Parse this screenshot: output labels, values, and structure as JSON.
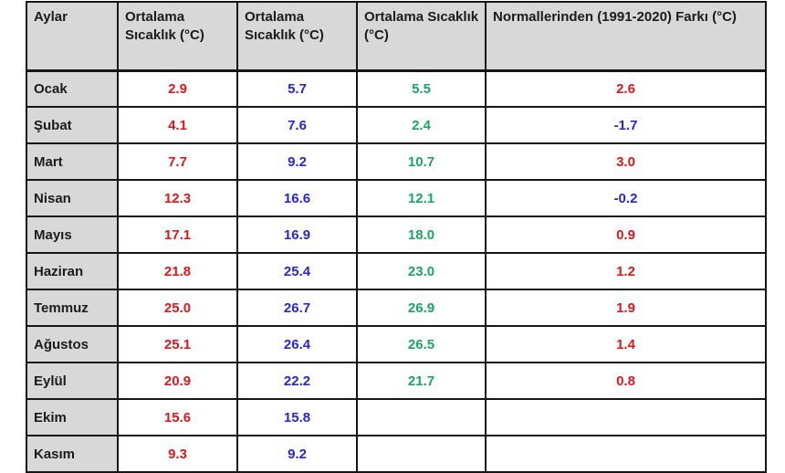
{
  "page": {
    "background": "#ffffff"
  },
  "colors": {
    "text": "#1b1b1b",
    "red": "#e1151b",
    "blue": "#2727d8",
    "green": "#18a85f",
    "header_bg": "#d8d8d8",
    "border": "#161616"
  },
  "chart_data": {
    "type": "table",
    "title": "",
    "columns": [
      "Aylar",
      "Ortalama Sıcaklık (°C)",
      "Ortalama Sıcaklık (°C)",
      "Ortalama Sıcaklık (°C)",
      "Normallerinden (1991-2020) Farkı (°C)"
    ],
    "column_value_colors": [
      "text",
      "red",
      "blue",
      "green",
      "signed"
    ],
    "rows": [
      {
        "month": "Ocak",
        "values": [
          "2.9",
          "5.7",
          "5.5",
          "2.6"
        ],
        "diff_color": "red"
      },
      {
        "month": "Şubat",
        "values": [
          "4.1",
          "7.6",
          "2.4",
          "-1.7"
        ],
        "diff_color": "blue"
      },
      {
        "month": "Mart",
        "values": [
          "7.7",
          "9.2",
          "10.7",
          "3.0"
        ],
        "diff_color": "red"
      },
      {
        "month": "Nisan",
        "values": [
          "12.3",
          "16.6",
          "12.1",
          "-0.2"
        ],
        "diff_color": "blue"
      },
      {
        "month": "Mayıs",
        "values": [
          "17.1",
          "16.9",
          "18.0",
          "0.9"
        ],
        "diff_color": "red"
      },
      {
        "month": "Haziran",
        "values": [
          "21.8",
          "25.4",
          "23.0",
          "1.2"
        ],
        "diff_color": "red"
      },
      {
        "month": "Temmuz",
        "values": [
          "25.0",
          "26.7",
          "26.9",
          "1.9"
        ],
        "diff_color": "red"
      },
      {
        "month": "Ağustos",
        "values": [
          "25.1",
          "26.4",
          "26.5",
          "1.4"
        ],
        "diff_color": "red"
      },
      {
        "month": "Eylül",
        "values": [
          "20.9",
          "22.2",
          "21.7",
          "0.8"
        ],
        "diff_color": "red"
      },
      {
        "month": "Ekim",
        "values": [
          "15.6",
          "15.8",
          "",
          ""
        ],
        "diff_color": ""
      },
      {
        "month": "Kasım",
        "values": [
          "9.3",
          "9.2",
          "",
          ""
        ],
        "diff_color": ""
      }
    ]
  }
}
